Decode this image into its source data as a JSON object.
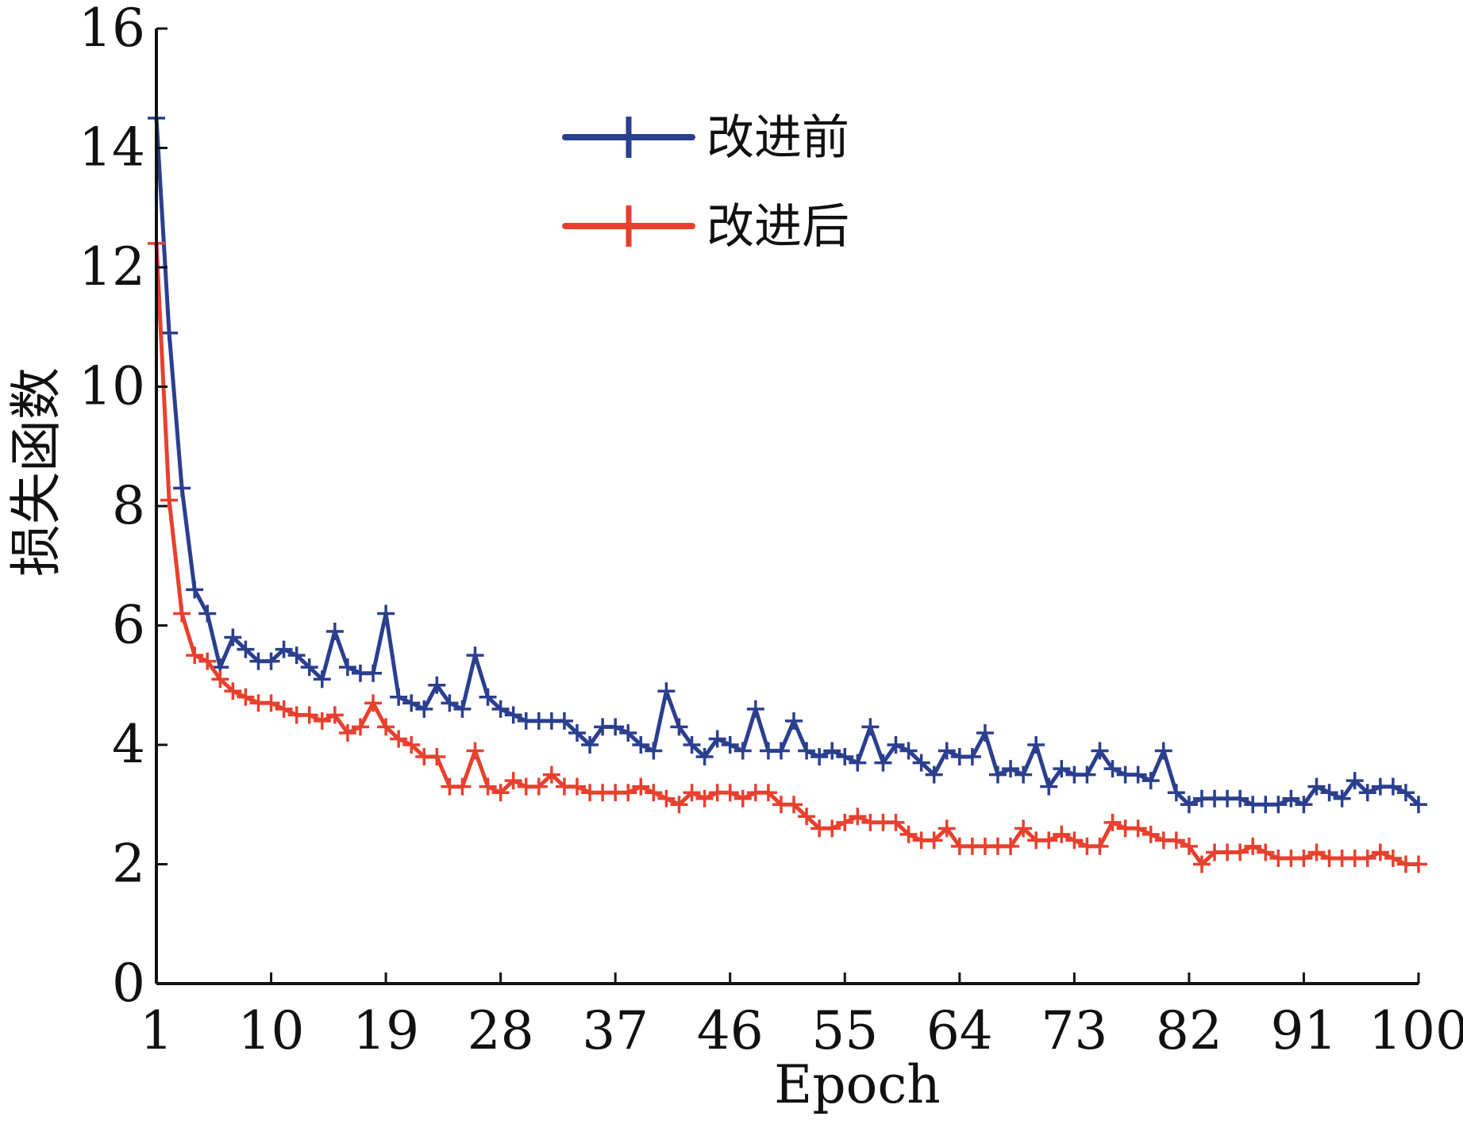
{
  "chart_data": {
    "type": "line",
    "xlabel": "Epoch",
    "ylabel": "损失函数",
    "xlim": [
      1,
      100
    ],
    "ylim": [
      0,
      16
    ],
    "x_ticks": [
      1,
      10,
      19,
      28,
      37,
      46,
      55,
      64,
      73,
      82,
      91,
      100
    ],
    "y_ticks": [
      0,
      2,
      4,
      6,
      8,
      10,
      12,
      14,
      16
    ],
    "x_tick_labels": [
      "1",
      "10",
      "19",
      "28",
      "37",
      "46",
      "55",
      "64",
      "73",
      "82",
      "91",
      "100"
    ],
    "y_tick_labels": [
      "0",
      "2",
      "4",
      "6",
      "8",
      "10",
      "12",
      "14",
      "16"
    ],
    "grid": false,
    "legend_position": "top-center",
    "x": [
      1,
      2,
      3,
      4,
      5,
      6,
      7,
      8,
      9,
      10,
      11,
      12,
      13,
      14,
      15,
      16,
      17,
      18,
      19,
      20,
      21,
      22,
      23,
      24,
      25,
      26,
      27,
      28,
      29,
      30,
      31,
      32,
      33,
      34,
      35,
      36,
      37,
      38,
      39,
      40,
      41,
      42,
      43,
      44,
      45,
      46,
      47,
      48,
      49,
      50,
      51,
      52,
      53,
      54,
      55,
      56,
      57,
      58,
      59,
      60,
      61,
      62,
      63,
      64,
      65,
      66,
      67,
      68,
      69,
      70,
      71,
      72,
      73,
      74,
      75,
      76,
      77,
      78,
      79,
      80,
      81,
      82,
      83,
      84,
      85,
      86,
      87,
      88,
      89,
      90,
      91,
      92,
      93,
      94,
      95,
      96,
      97,
      98,
      99,
      100
    ],
    "series": [
      {
        "name": "改进前",
        "color": "#2b3f8f",
        "marker": "plus",
        "values": [
          14.5,
          10.9,
          8.3,
          6.6,
          6.2,
          5.3,
          5.8,
          5.6,
          5.4,
          5.4,
          5.6,
          5.5,
          5.3,
          5.1,
          5.9,
          5.3,
          5.2,
          5.2,
          6.2,
          4.8,
          4.7,
          4.6,
          5.0,
          4.7,
          4.6,
          5.5,
          4.8,
          4.6,
          4.5,
          4.4,
          4.4,
          4.4,
          4.4,
          4.2,
          4.0,
          4.3,
          4.3,
          4.2,
          4.0,
          3.9,
          4.9,
          4.3,
          4.0,
          3.8,
          4.1,
          4.0,
          3.9,
          4.6,
          3.9,
          3.9,
          4.4,
          3.9,
          3.8,
          3.9,
          3.8,
          3.7,
          4.3,
          3.7,
          4.0,
          3.9,
          3.7,
          3.5,
          3.9,
          3.8,
          3.8,
          4.2,
          3.5,
          3.6,
          3.5,
          4.0,
          3.3,
          3.6,
          3.5,
          3.5,
          3.9,
          3.6,
          3.5,
          3.5,
          3.4,
          3.9,
          3.2,
          3.0,
          3.1,
          3.1,
          3.1,
          3.1,
          3.0,
          3.0,
          3.0,
          3.1,
          3.0,
          3.3,
          3.2,
          3.1,
          3.4,
          3.2,
          3.3,
          3.3,
          3.2,
          3.0
        ]
      },
      {
        "name": "改进后",
        "color": "#e8402e",
        "marker": "plus",
        "values": [
          12.4,
          8.1,
          6.2,
          5.5,
          5.4,
          5.1,
          4.9,
          4.8,
          4.7,
          4.7,
          4.6,
          4.5,
          4.5,
          4.4,
          4.5,
          4.2,
          4.3,
          4.7,
          4.3,
          4.1,
          4.0,
          3.8,
          3.8,
          3.3,
          3.3,
          3.9,
          3.3,
          3.2,
          3.4,
          3.3,
          3.3,
          3.5,
          3.3,
          3.3,
          3.2,
          3.2,
          3.2,
          3.2,
          3.3,
          3.2,
          3.1,
          3.0,
          3.2,
          3.1,
          3.2,
          3.2,
          3.1,
          3.2,
          3.2,
          3.0,
          3.0,
          2.8,
          2.6,
          2.6,
          2.7,
          2.8,
          2.7,
          2.7,
          2.7,
          2.5,
          2.4,
          2.4,
          2.6,
          2.3,
          2.3,
          2.3,
          2.3,
          2.3,
          2.6,
          2.4,
          2.4,
          2.5,
          2.4,
          2.3,
          2.3,
          2.7,
          2.6,
          2.6,
          2.5,
          2.4,
          2.4,
          2.3,
          2.0,
          2.2,
          2.2,
          2.2,
          2.3,
          2.2,
          2.1,
          2.1,
          2.1,
          2.2,
          2.1,
          2.1,
          2.1,
          2.1,
          2.2,
          2.1,
          2.0,
          2.0
        ]
      }
    ]
  }
}
